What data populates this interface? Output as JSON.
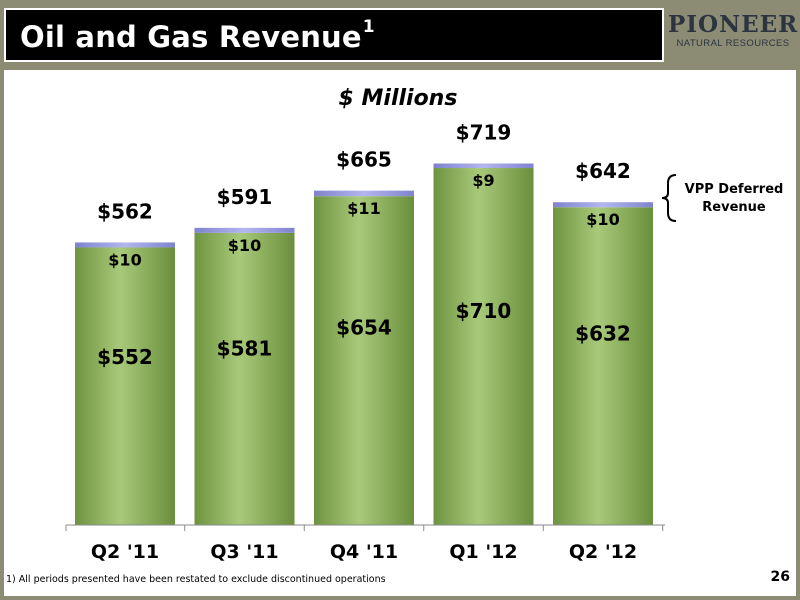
{
  "slide": {
    "title": "Oil and Gas Revenue",
    "title_sup": "1",
    "logo_main": "PIONEER",
    "logo_sub": "NATURAL RESOURCES",
    "footnote": "1)  All periods presented have been restated to exclude discontinued operations",
    "page_number": "26"
  },
  "chart_data": {
    "type": "bar",
    "stacked": true,
    "subtitle": "$ Millions",
    "categories": [
      "Q2 '11",
      "Q3 '11",
      "Q4 '11",
      "Q1 '12",
      "Q2 '12"
    ],
    "series": [
      {
        "name": "",
        "values": [
          552,
          581,
          654,
          710,
          632
        ],
        "labels": [
          "$552",
          "$581",
          "$654",
          "$710",
          "$632"
        ],
        "color": "#7fa34a"
      },
      {
        "name": "VPP Deferred Revenue",
        "values": [
          10,
          10,
          11,
          9,
          10
        ],
        "labels": [
          "$10",
          "$10",
          "$11",
          "$9",
          "$10"
        ],
        "color": "#8c8fd6"
      }
    ],
    "totals": [
      562,
      591,
      665,
      719,
      642
    ],
    "total_labels": [
      "$562",
      "$591",
      "$665",
      "$719",
      "$642"
    ],
    "ylim": [
      0,
      800
    ],
    "grid": false,
    "legend": "right"
  }
}
